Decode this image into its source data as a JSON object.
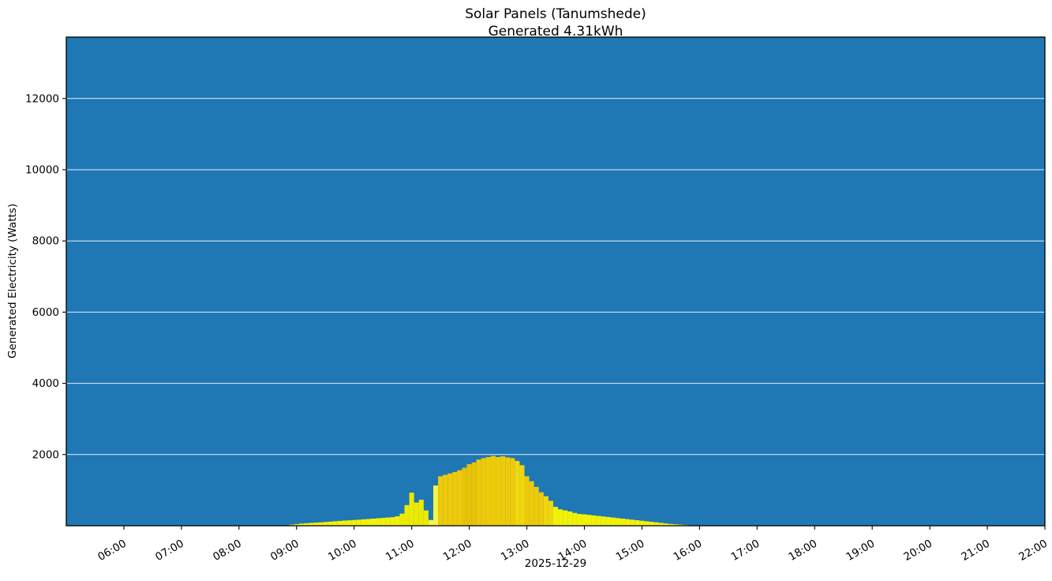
{
  "header": {
    "title": "Solar Panels (Tanumshede)",
    "subtitle": "Generated 4.31kWh"
  },
  "chart_data": {
    "type": "bar",
    "title": "Solar Panels (Tanumshede)",
    "subtitle": "Generated 4.31kWh",
    "generated_kwh": 4.31,
    "xlabel": "2025-12-29",
    "ylabel": "Generated Electricity (Watts)",
    "x_tick_labels": [
      "06:00",
      "07:00",
      "08:00",
      "09:00",
      "10:00",
      "11:00",
      "12:00",
      "13:00",
      "14:00",
      "15:00",
      "16:00",
      "17:00",
      "18:00",
      "19:00",
      "20:00",
      "21:00",
      "22:00"
    ],
    "x_range_minutes": [
      300,
      1320
    ],
    "y_ticks": [
      2000,
      4000,
      6000,
      8000,
      10000,
      12000
    ],
    "ylim": [
      0,
      13725
    ],
    "grid": true,
    "legend": "none",
    "colors": {
      "plot_bg": "#1f77b4",
      "grid": "#ffffff",
      "spine": "#000000",
      "tick": "#000000",
      "text": "#000000",
      "bar_palette": [
        "#f2f207",
        "#ebeb00",
        "#f5f549",
        "#edca0a",
        "#e6c306",
        "#f0d70d"
      ]
    },
    "bar_width_minutes": 5,
    "points": {
      "times": [
        "08:55",
        "09:00",
        "09:05",
        "09:10",
        "09:15",
        "09:20",
        "09:25",
        "09:30",
        "09:35",
        "09:40",
        "09:45",
        "09:50",
        "09:55",
        "10:00",
        "10:05",
        "10:10",
        "10:15",
        "10:20",
        "10:25",
        "10:30",
        "10:35",
        "10:40",
        "10:45",
        "10:50",
        "10:55",
        "11:00",
        "11:05",
        "11:10",
        "11:15",
        "11:20",
        "11:25",
        "11:30",
        "11:35",
        "11:40",
        "11:45",
        "11:50",
        "11:55",
        "12:00",
        "12:05",
        "12:10",
        "12:15",
        "12:20",
        "12:25",
        "12:30",
        "12:35",
        "12:40",
        "12:45",
        "12:50",
        "12:55",
        "13:00",
        "13:05",
        "13:10",
        "13:15",
        "13:20",
        "13:25",
        "13:30",
        "13:35",
        "13:40",
        "13:45",
        "13:50",
        "13:55",
        "14:00",
        "14:05",
        "14:10",
        "14:15",
        "14:20",
        "14:25",
        "14:30",
        "14:35",
        "14:40",
        "14:45",
        "14:50",
        "14:55",
        "15:00",
        "15:05",
        "15:10",
        "15:15",
        "15:20",
        "15:25",
        "15:30",
        "15:35",
        "15:40",
        "15:45",
        "15:50",
        "15:55"
      ],
      "watts": [
        30,
        45,
        60,
        70,
        80,
        88,
        95,
        105,
        115,
        125,
        135,
        145,
        152,
        160,
        170,
        180,
        190,
        200,
        210,
        220,
        230,
        240,
        265,
        340,
        580,
        930,
        650,
        730,
        430,
        160,
        1130,
        1390,
        1430,
        1470,
        1510,
        1560,
        1630,
        1730,
        1780,
        1860,
        1900,
        1930,
        1960,
        1930,
        1950,
        1920,
        1900,
        1820,
        1700,
        1390,
        1250,
        1090,
        940,
        830,
        700,
        530,
        460,
        430,
        400,
        360,
        330,
        320,
        305,
        290,
        275,
        260,
        245,
        230,
        215,
        200,
        185,
        170,
        155,
        140,
        125,
        110,
        95,
        80,
        65,
        50,
        40,
        30,
        22,
        14,
        6
      ],
      "band": [
        0,
        0,
        0,
        0,
        0,
        0,
        0,
        0,
        0,
        0,
        0,
        0,
        0,
        0,
        0,
        0,
        0,
        0,
        0,
        0,
        0,
        0,
        0,
        1,
        1,
        1,
        1,
        1,
        1,
        2,
        2,
        3,
        3,
        3,
        3,
        3,
        4,
        4,
        4,
        3,
        3,
        3,
        3,
        3,
        3,
        3,
        3,
        5,
        5,
        3,
        3,
        3,
        3,
        5,
        5,
        0,
        0,
        0,
        0,
        0,
        0,
        0,
        0,
        0,
        0,
        0,
        0,
        0,
        0,
        0,
        0,
        0,
        0,
        0,
        0,
        0,
        0,
        0,
        0,
        0,
        0,
        0,
        0,
        0,
        0
      ]
    }
  }
}
